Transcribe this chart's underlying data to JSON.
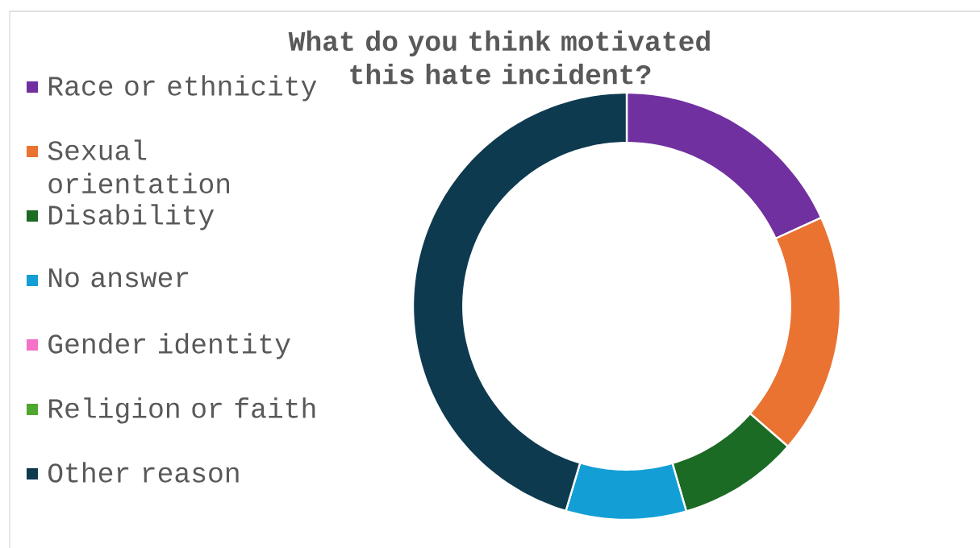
{
  "chart_data": {
    "type": "donut",
    "title": "What do you think motivated this hate incident?",
    "categories": [
      "Race or ethnicity",
      "Sexual orientation",
      "Disability",
      "No answer",
      "Gender identity",
      "Religion or faith",
      "Other reason"
    ],
    "values": [
      18.2,
      18.2,
      9.1,
      9.1,
      0,
      0,
      45.4
    ],
    "colors": [
      "#7030a0",
      "#ea7331",
      "#1b6b24",
      "#139fd6",
      "#f472c8",
      "#4ea72e",
      "#0e3a50"
    ],
    "legend": "left"
  }
}
